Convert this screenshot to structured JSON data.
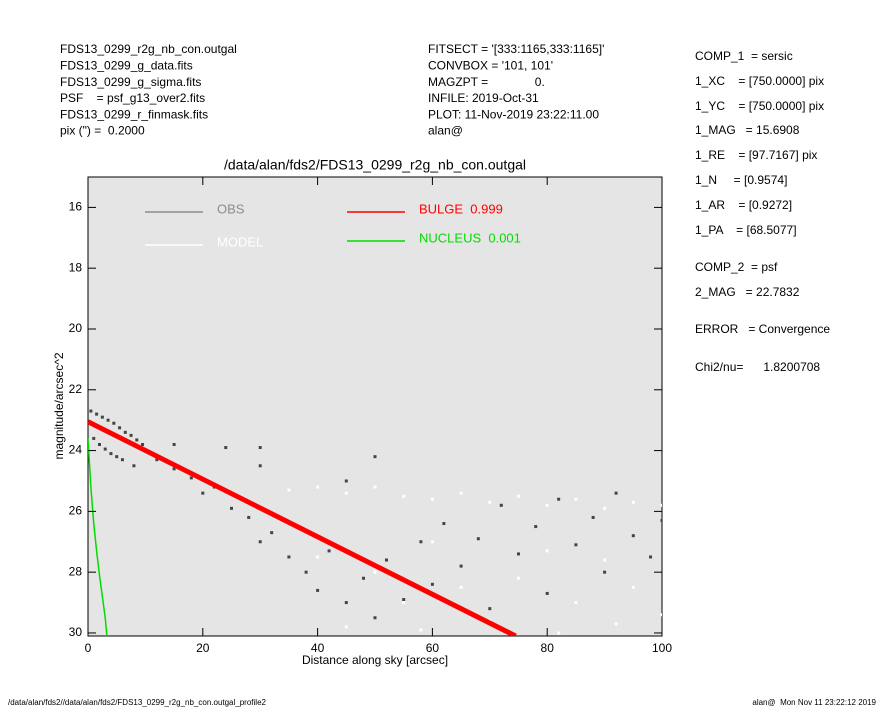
{
  "chart_data": {
    "type": "scatter",
    "title": "/data/alan/fds2/FDS13_0299_r2g_nb_con.outgal",
    "x_label": "Distance along sky [arcsec]",
    "y_label": "magnitude/arcsec^2",
    "xlim": [
      0,
      100
    ],
    "ylim": [
      30.1,
      15
    ],
    "xticks": [
      0,
      20,
      40,
      60,
      80,
      100
    ],
    "yticks": [
      16,
      18,
      20,
      22,
      24,
      26,
      28,
      30
    ],
    "background": "#e5e5e5",
    "series": [
      {
        "name": "OBS",
        "type": "scatter",
        "color": "#444444",
        "legend_color": "#8c8c8c",
        "x": [
          0.5,
          1.5,
          2.5,
          3.5,
          4.5,
          5.5,
          6.5,
          7.5,
          8.5,
          9.5,
          1,
          2,
          3,
          4,
          5,
          6,
          8,
          12,
          15,
          18,
          20,
          22,
          25,
          28,
          30,
          32,
          35,
          38,
          40,
          42,
          45,
          48,
          50,
          52,
          55,
          58,
          60,
          62,
          65,
          68,
          70,
          72,
          75,
          78,
          80,
          82,
          85,
          88,
          90,
          92,
          95,
          98,
          100,
          15,
          24,
          30,
          50,
          30,
          45
        ],
        "values": [
          22.7,
          22.8,
          22.9,
          23.0,
          23.1,
          23.25,
          23.4,
          23.5,
          23.65,
          23.8,
          23.6,
          23.8,
          23.95,
          24.1,
          24.2,
          24.3,
          24.5,
          24.3,
          24.6,
          24.9,
          25.4,
          25.2,
          25.9,
          26.2,
          27.0,
          26.7,
          27.5,
          28.0,
          28.6,
          27.3,
          29.0,
          28.2,
          29.5,
          27.6,
          28.9,
          27.0,
          28.4,
          26.4,
          27.8,
          26.9,
          29.2,
          25.8,
          27.4,
          26.5,
          28.7,
          25.6,
          27.1,
          26.2,
          28.0,
          25.4,
          26.8,
          27.5,
          26.3,
          23.8,
          23.9,
          23.9,
          24.2,
          24.5,
          25.0
        ]
      },
      {
        "name": "MODEL",
        "type": "scatter",
        "color": "#ffffff",
        "legend_color": "#ffffff",
        "x": [
          35,
          40,
          45,
          50,
          55,
          60,
          65,
          70,
          75,
          80,
          85,
          90,
          95,
          100,
          40,
          50,
          55,
          60,
          65,
          70,
          75,
          80,
          85,
          90,
          95,
          100,
          45,
          58,
          82,
          92
        ],
        "values": [
          25.3,
          25.2,
          25.4,
          25.2,
          25.5,
          25.6,
          25.4,
          25.7,
          25.5,
          25.8,
          25.6,
          25.9,
          25.7,
          25.8,
          27.5,
          28.0,
          29.0,
          27.0,
          28.5,
          29.6,
          28.2,
          27.3,
          29.0,
          27.6,
          28.5,
          29.4,
          29.8,
          29.9,
          30.0,
          29.7
        ]
      },
      {
        "name": "BULGE  0.999",
        "type": "line",
        "color": "#ff0000",
        "legend_color": "#ff0000",
        "x": [
          0,
          74.5
        ],
        "values": [
          23.05,
          30.1
        ]
      },
      {
        "name": "NUCLEUS  0.001",
        "type": "line",
        "color": "#00dd00",
        "legend_color": "#00dd00",
        "x": [
          0,
          0.5,
          1,
          1.5,
          2,
          2.5,
          3,
          3.3
        ],
        "values": [
          23.6,
          25.2,
          26.4,
          27.3,
          28.1,
          28.8,
          29.5,
          30.1
        ]
      }
    ],
    "header_left": [
      "FDS13_0299_r2g_nb_con.outgal",
      "FDS13_0299_g_data.fits",
      "FDS13_0299_g_sigma.fits",
      "PSF    = psf_g13_over2.fits",
      "FDS13_0299_r_finmask.fits",
      "pix (\") =  0.2000"
    ],
    "header_mid": [
      "FITSECT = '[333:1165,333:1165]'",
      "CONVBOX = '101, 101'",
      "MAGZPT =              0.",
      "INFILE: 2019-Oct-31",
      "PLOT: 11-Nov-2019 23:22:11.00",
      "alan@"
    ],
    "params": [
      "COMP_1  = sersic",
      "1_XC    = [750.0000] pix",
      "1_YC    = [750.0000] pix",
      "1_MAG   = 15.6908",
      "1_RE    = [97.7167] pix",
      "1_N     = [0.9574]",
      "1_AR    = [0.9272]",
      "1_PA    = [68.5077]",
      "COMP_2  = psf",
      "2_MAG   = 22.7832",
      "ERROR   = Convergence",
      "Chi2/nu=      1.8200708"
    ],
    "footer_left": "/data/alan/fds2//data/alan/fds2/FDS13_0299_r2g_nb_con.outgal_profile2",
    "footer_right": "alan@  Mon Nov 11 23:22:12 2019"
  }
}
